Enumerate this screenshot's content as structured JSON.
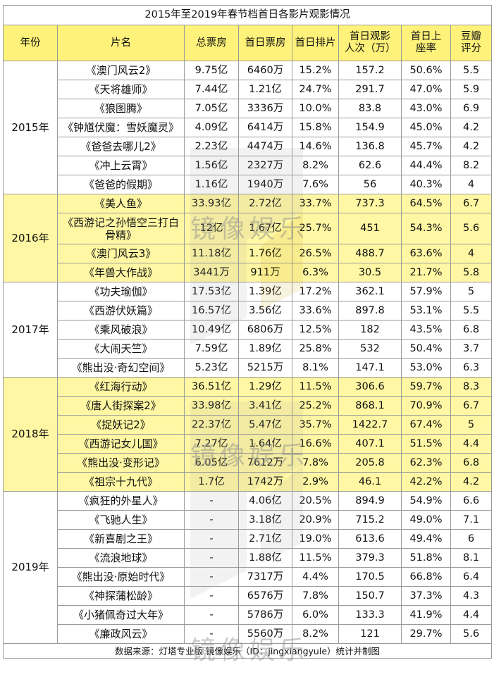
{
  "title": "2015年至2019年春节档首日各影片观影情况",
  "headers": [
    "年份",
    "片名",
    "总票房",
    "首日票房",
    "首日排片",
    "首日观影人次（万）",
    "首日上座率",
    "豆瓣评分"
  ],
  "groups": [
    {
      "year": "2015年",
      "highlight": false,
      "rows": [
        [
          "《澳门风云2》",
          "9.75亿",
          "6460万",
          "15.2%",
          "157.2",
          "50.6%",
          "5.5"
        ],
        [
          "《天将雄师》",
          "7.44亿",
          "1.21亿",
          "24.7%",
          "291.7",
          "47.0%",
          "5.9"
        ],
        [
          "《狼图腾》",
          "7.05亿",
          "3336万",
          "10.0%",
          "83.8",
          "43.0%",
          "6.9"
        ],
        [
          "《钟馗伏魔：雪妖魔灵》",
          "4.09亿",
          "6414万",
          "15.8%",
          "154.9",
          "45.0%",
          "4.2"
        ],
        [
          "《爸爸去哪儿2》",
          "2.23亿",
          "4474万",
          "14.6%",
          "136.8",
          "45.7%",
          "4.2"
        ],
        [
          "《冲上云霄》",
          "1.56亿",
          "2327万",
          "8.2%",
          "62.6",
          "44.4%",
          "8.2"
        ],
        [
          "《爸爸的假期》",
          "1.16亿",
          "1940万",
          "7.6%",
          "56",
          "40.3%",
          "4"
        ]
      ]
    },
    {
      "year": "2016年",
      "highlight": true,
      "rows": [
        [
          "《美人鱼》",
          "33.93亿",
          "2.72亿",
          "33.7%",
          "737.3",
          "64.5%",
          "6.7"
        ],
        [
          "《西游记之孙悟空三打白骨精》",
          "12亿",
          "1.67亿",
          "25.7%",
          "451",
          "54.3%",
          "5.6"
        ],
        [
          "《澳门风云3》",
          "11.18亿",
          "1.76亿",
          "26.5%",
          "488.7",
          "63.6%",
          "4"
        ],
        [
          "《年兽大作战》",
          "3441万",
          "911万",
          "6.3%",
          "30.5",
          "21.7%",
          "5.8"
        ]
      ]
    },
    {
      "year": "2017年",
      "highlight": false,
      "rows": [
        [
          "《功夫瑜伽》",
          "17.53亿",
          "1.39亿",
          "17.2%",
          "362.1",
          "57.9%",
          "5"
        ],
        [
          "《西游伏妖篇》",
          "16.57亿",
          "3.56亿",
          "33.6%",
          "897.8",
          "53.1%",
          "5.5"
        ],
        [
          "《乘风破浪》",
          "10.49亿",
          "6806万",
          "12.5%",
          "182",
          "43.5%",
          "6.8"
        ],
        [
          "《大闹天竺》",
          "7.59亿",
          "1.89亿",
          "25.8%",
          "532",
          "50.4%",
          "3.7"
        ],
        [
          "《熊出没·奇幻空间》",
          "5.23亿",
          "5215万",
          "8.1%",
          "147.1",
          "53.0%",
          "6.3"
        ]
      ]
    },
    {
      "year": "2018年",
      "highlight": true,
      "rows": [
        [
          "《红海行动》",
          "36.51亿",
          "1.29亿",
          "11.5%",
          "306.6",
          "59.7%",
          "8.3"
        ],
        [
          "《唐人街探案2》",
          "33.98亿",
          "3.41亿",
          "25.2%",
          "868.1",
          "70.9%",
          "6.7"
        ],
        [
          "《捉妖记2》",
          "22.37亿",
          "5.47亿",
          "35.7%",
          "1422.7",
          "67.4%",
          "5"
        ],
        [
          "《西游记女儿国》",
          "7.27亿",
          "1.64亿",
          "16.6%",
          "407.1",
          "51.5%",
          "4.4"
        ],
        [
          "《熊出没·变形记》",
          "6.05亿",
          "7612万",
          "7.8%",
          "205.8",
          "62.3%",
          "6.8"
        ],
        [
          "《祖宗十九代》",
          "1.7亿",
          "1742万",
          "2.9%",
          "46.1",
          "42.2%",
          "4.2"
        ]
      ]
    },
    {
      "year": "2019年",
      "highlight": false,
      "rows": [
        [
          "《疯狂的外星人》",
          "-",
          "4.06亿",
          "20.5%",
          "894.9",
          "54.9%",
          "6.6"
        ],
        [
          "《飞驰人生》",
          "-",
          "3.18亿",
          "20.9%",
          "715.2",
          "49.0%",
          "7.1"
        ],
        [
          "《新喜剧之王》",
          "-",
          "2.71亿",
          "19.0%",
          "613.6",
          "49.4%",
          "6"
        ],
        [
          "《流浪地球》",
          "-",
          "1.88亿",
          "11.5%",
          "379.3",
          "51.8%",
          "8.1"
        ],
        [
          "《熊出没·原始时代》",
          "-",
          "7317万",
          "4.4%",
          "170.5",
          "66.8%",
          "6.4"
        ],
        [
          "《神探蒲松龄》",
          "-",
          "6576万",
          "7.8%",
          "150.7",
          "37.3%",
          "4.3"
        ],
        [
          "《小猪佩奇过大年》",
          "-",
          "5786万",
          "6.0%",
          "133.3",
          "41.9%",
          "4.4"
        ],
        [
          "《廉政风云》",
          "-",
          "5560万",
          "8.2%",
          "121",
          "29.7%",
          "5.6"
        ]
      ]
    }
  ],
  "footer": "数据来源：灯塔专业版   镜像娱乐（ID：jingxiangyule）统计并制图",
  "watermark": "镜像娱乐",
  "colors": {
    "header_bg": "#fff27a",
    "highlight_bg": "#fff7a3",
    "border": "#9a9a9a"
  }
}
